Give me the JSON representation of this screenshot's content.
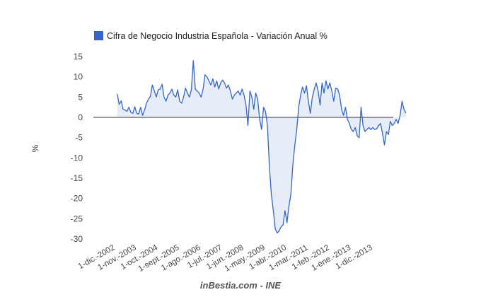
{
  "chart_data": {
    "type": "area",
    "legend": {
      "label": "Cifra de Negocio Industria Española - Variación Anual %",
      "position": "top-left"
    },
    "ylabel": "%",
    "xlabel": "",
    "ylim": [
      -30,
      15
    ],
    "yticks": [
      15,
      10,
      5,
      0,
      -5,
      -10,
      -15,
      -20,
      -25,
      -30
    ],
    "xticks": [
      {
        "label": "1-dic.-2002",
        "x": "2002-12"
      },
      {
        "label": "1-nov.-2003",
        "x": "2003-11"
      },
      {
        "label": "1-oct.-2004",
        "x": "2004-10"
      },
      {
        "label": "1-sept.-2005",
        "x": "2005-09"
      },
      {
        "label": "1-ago.-2006",
        "x": "2006-08"
      },
      {
        "label": "1-jul.-2007",
        "x": "2007-07"
      },
      {
        "label": "1-jun.-2008",
        "x": "2008-06"
      },
      {
        "label": "1-may.-2009",
        "x": "2009-05"
      },
      {
        "label": "1-abr.-2010",
        "x": "2010-04"
      },
      {
        "label": "1-mar.-2011",
        "x": "2011-03"
      },
      {
        "label": "1-feb.-2012",
        "x": "2012-02"
      },
      {
        "label": "1-ene.-2013",
        "x": "2013-01"
      },
      {
        "label": "1-dic.-2013",
        "x": "2013-12"
      }
    ],
    "series": [
      {
        "name": "Cifra de Negocio Industria Española - Variación Anual %",
        "color": "#3366cc",
        "fill": "#e6ecf8",
        "x_start": "2003-01",
        "values": [
          5.8,
          3.2,
          4.1,
          2.0,
          1.8,
          1.5,
          2.5,
          1.2,
          1.0,
          2.6,
          1.0,
          0.8,
          2.5,
          0.5,
          1.8,
          3.5,
          4.5,
          5.2,
          8.0,
          6.5,
          5.0,
          6.8,
          7.0,
          8.2,
          5.0,
          4.0,
          5.5,
          6.0,
          7.0,
          5.5,
          5.0,
          6.8,
          4.0,
          3.5,
          5.0,
          7.2,
          6.0,
          5.0,
          6.8,
          14.0,
          7.0,
          6.5,
          6.0,
          5.0,
          7.0,
          10.5,
          10.0,
          9.0,
          8.0,
          9.5,
          7.5,
          9.0,
          7.0,
          8.5,
          9.2,
          8.5,
          7.2,
          8.0,
          6.5,
          4.5,
          5.5,
          6.0,
          6.5,
          5.5,
          7.0,
          5.5,
          3.0,
          -2.0,
          6.5,
          5.0,
          2.0,
          6.0,
          4.5,
          -0.5,
          -3.0,
          2.5,
          1.5,
          -2.0,
          -12.0,
          -19.0,
          -23.0,
          -27.5,
          -28.5,
          -28.0,
          -27.0,
          -26.5,
          -23.0,
          -26.0,
          -22.0,
          -19.0,
          -12.0,
          -7.0,
          -3.0,
          2.5,
          5.5,
          7.5,
          6.0,
          7.8,
          4.0,
          1.0,
          5.0,
          7.0,
          8.5,
          6.5,
          3.0,
          8.5,
          6.0,
          9.0,
          7.0,
          8.5,
          6.5,
          4.0,
          7.2,
          7.0,
          5.5,
          2.0,
          0.5,
          2.5,
          -0.5,
          -1.5,
          -3.0,
          -3.5,
          -2.5,
          -4.5,
          -5.0,
          2.5,
          -2.0,
          -3.5,
          -3.0,
          -2.5,
          -3.0,
          -2.5,
          -3.0,
          -2.8,
          -2.0,
          -1.5,
          -4.0,
          -6.8,
          -3.5,
          -4.2,
          -1.0,
          -2.0,
          -1.5,
          -0.5,
          -1.5,
          0.5,
          4.0,
          2.0,
          1.0
        ]
      }
    ],
    "grid": false,
    "zero_line": true
  },
  "footer": {
    "source": "inBestia.com - INE"
  }
}
